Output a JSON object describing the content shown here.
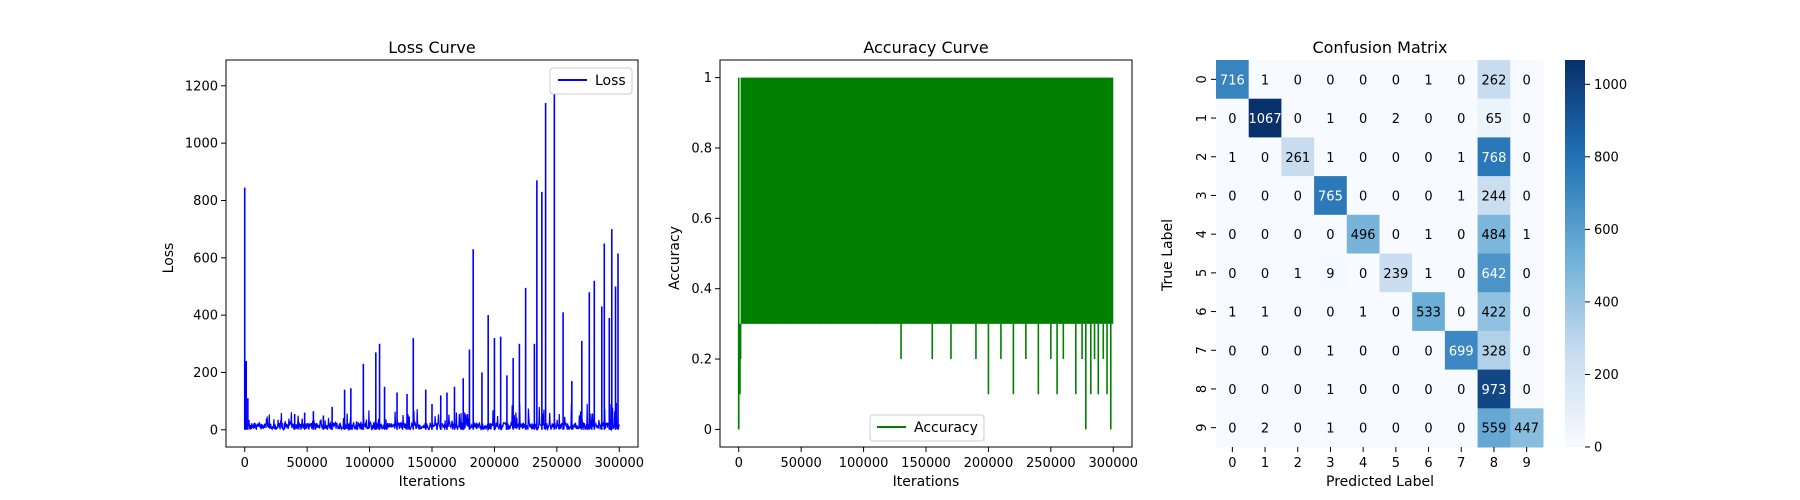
{
  "chart_data": [
    {
      "type": "line",
      "title": "Loss Curve",
      "xlabel": "Iterations",
      "ylabel": "Loss",
      "xlim": [
        -15000,
        315000
      ],
      "ylim": [
        -60,
        1290
      ],
      "xticks": [
        0,
        50000,
        100000,
        150000,
        200000,
        250000,
        300000
      ],
      "yticks": [
        0,
        200,
        400,
        600,
        800,
        1000,
        1200
      ],
      "legend": "top-right",
      "series": [
        {
          "name": "Loss",
          "color": "#0000ff",
          "baseline": [
            0,
            25
          ],
          "x": [
            0,
            1200,
            2500,
            40000,
            48000,
            55000,
            63000,
            70000,
            80000,
            85000,
            95000,
            105000,
            108000,
            112000,
            122000,
            130000,
            135000,
            145000,
            150000,
            157000,
            162000,
            168000,
            175000,
            180000,
            183000,
            190000,
            195000,
            200000,
            205000,
            210000,
            215000,
            220000,
            225000,
            232000,
            234000,
            238000,
            241000,
            248000,
            255000,
            262000,
            270000,
            276000,
            280000,
            286000,
            288000,
            292000,
            294000,
            297000,
            299000
          ],
          "y": [
            845,
            240,
            110,
            55,
            60,
            65,
            50,
            80,
            140,
            145,
            230,
            270,
            300,
            150,
            130,
            125,
            320,
            140,
            90,
            120,
            130,
            150,
            180,
            280,
            630,
            200,
            400,
            320,
            325,
            190,
            250,
            300,
            495,
            300,
            870,
            830,
            1140,
            1225,
            410,
            170,
            310,
            480,
            520,
            430,
            650,
            390,
            700,
            500,
            615
          ]
        }
      ]
    },
    {
      "type": "line",
      "title": "Accuracy Curve",
      "xlabel": "Iterations",
      "ylabel": "Accuracy",
      "xlim": [
        -15000,
        315000
      ],
      "ylim": [
        -0.05,
        1.05
      ],
      "xticks": [
        0,
        50000,
        100000,
        150000,
        200000,
        250000,
        300000
      ],
      "yticks": [
        0.0,
        0.2,
        0.4,
        0.6,
        0.8,
        1.0
      ],
      "legend": "bottom-center",
      "series": [
        {
          "name": "Accuracy",
          "color": "#008000",
          "band": [
            0.3,
            1.0
          ],
          "x": [
            0,
            1000,
            1500,
            4000,
            10000,
            13000,
            15000,
            20000,
            25000,
            30000,
            35000,
            40000,
            45000,
            50000,
            55000,
            60000,
            65000,
            70000,
            80000,
            90000,
            100000,
            110000,
            120000,
            130000,
            140000,
            150000,
            155000,
            160000,
            170000,
            180000,
            190000,
            200000,
            205000,
            210000,
            220000,
            230000,
            240000,
            250000,
            255000,
            260000,
            270000,
            275000,
            278000,
            282000,
            285000,
            288000,
            292000,
            295000,
            298000
          ],
          "y": [
            0.0,
            0.1,
            0.2,
            0.3,
            0.4,
            0.5,
            0.3,
            0.5,
            0.4,
            0.5,
            0.3,
            0.5,
            0.4,
            0.3,
            0.5,
            0.4,
            0.5,
            0.4,
            0.3,
            0.4,
            0.3,
            0.4,
            0.3,
            0.2,
            0.3,
            0.4,
            0.2,
            0.3,
            0.2,
            0.3,
            0.2,
            0.1,
            0.3,
            0.2,
            0.1,
            0.2,
            0.1,
            0.2,
            0.1,
            0.2,
            0.1,
            0.2,
            0.0,
            0.1,
            0.2,
            0.1,
            0.2,
            0.1,
            0.0
          ]
        }
      ]
    },
    {
      "type": "heatmap",
      "title": "Confusion Matrix",
      "xlabel": "Predicted Label",
      "ylabel": "True Label",
      "x_categories": [
        "0",
        "1",
        "2",
        "3",
        "4",
        "5",
        "6",
        "7",
        "8",
        "9"
      ],
      "y_categories": [
        "0",
        "1",
        "2",
        "3",
        "4",
        "5",
        "6",
        "7",
        "8",
        "9"
      ],
      "colormap": "Blues",
      "vmin": 0,
      "vmax": 1067,
      "colorbar_ticks": [
        0,
        200,
        400,
        600,
        800,
        1000
      ],
      "values": [
        [
          716,
          1,
          0,
          0,
          0,
          0,
          1,
          0,
          262,
          0
        ],
        [
          0,
          1067,
          0,
          1,
          0,
          2,
          0,
          0,
          65,
          0
        ],
        [
          1,
          0,
          261,
          1,
          0,
          0,
          0,
          1,
          768,
          0
        ],
        [
          0,
          0,
          0,
          765,
          0,
          0,
          0,
          1,
          244,
          0
        ],
        [
          0,
          0,
          0,
          0,
          496,
          0,
          1,
          0,
          484,
          1
        ],
        [
          0,
          0,
          1,
          9,
          0,
          239,
          1,
          0,
          642,
          0
        ],
        [
          1,
          1,
          0,
          0,
          1,
          0,
          533,
          0,
          422,
          0
        ],
        [
          0,
          0,
          0,
          1,
          0,
          0,
          0,
          699,
          328,
          0
        ],
        [
          0,
          0,
          0,
          1,
          0,
          0,
          0,
          0,
          973,
          0
        ],
        [
          0,
          2,
          0,
          1,
          0,
          0,
          0,
          0,
          559,
          447
        ]
      ]
    }
  ]
}
